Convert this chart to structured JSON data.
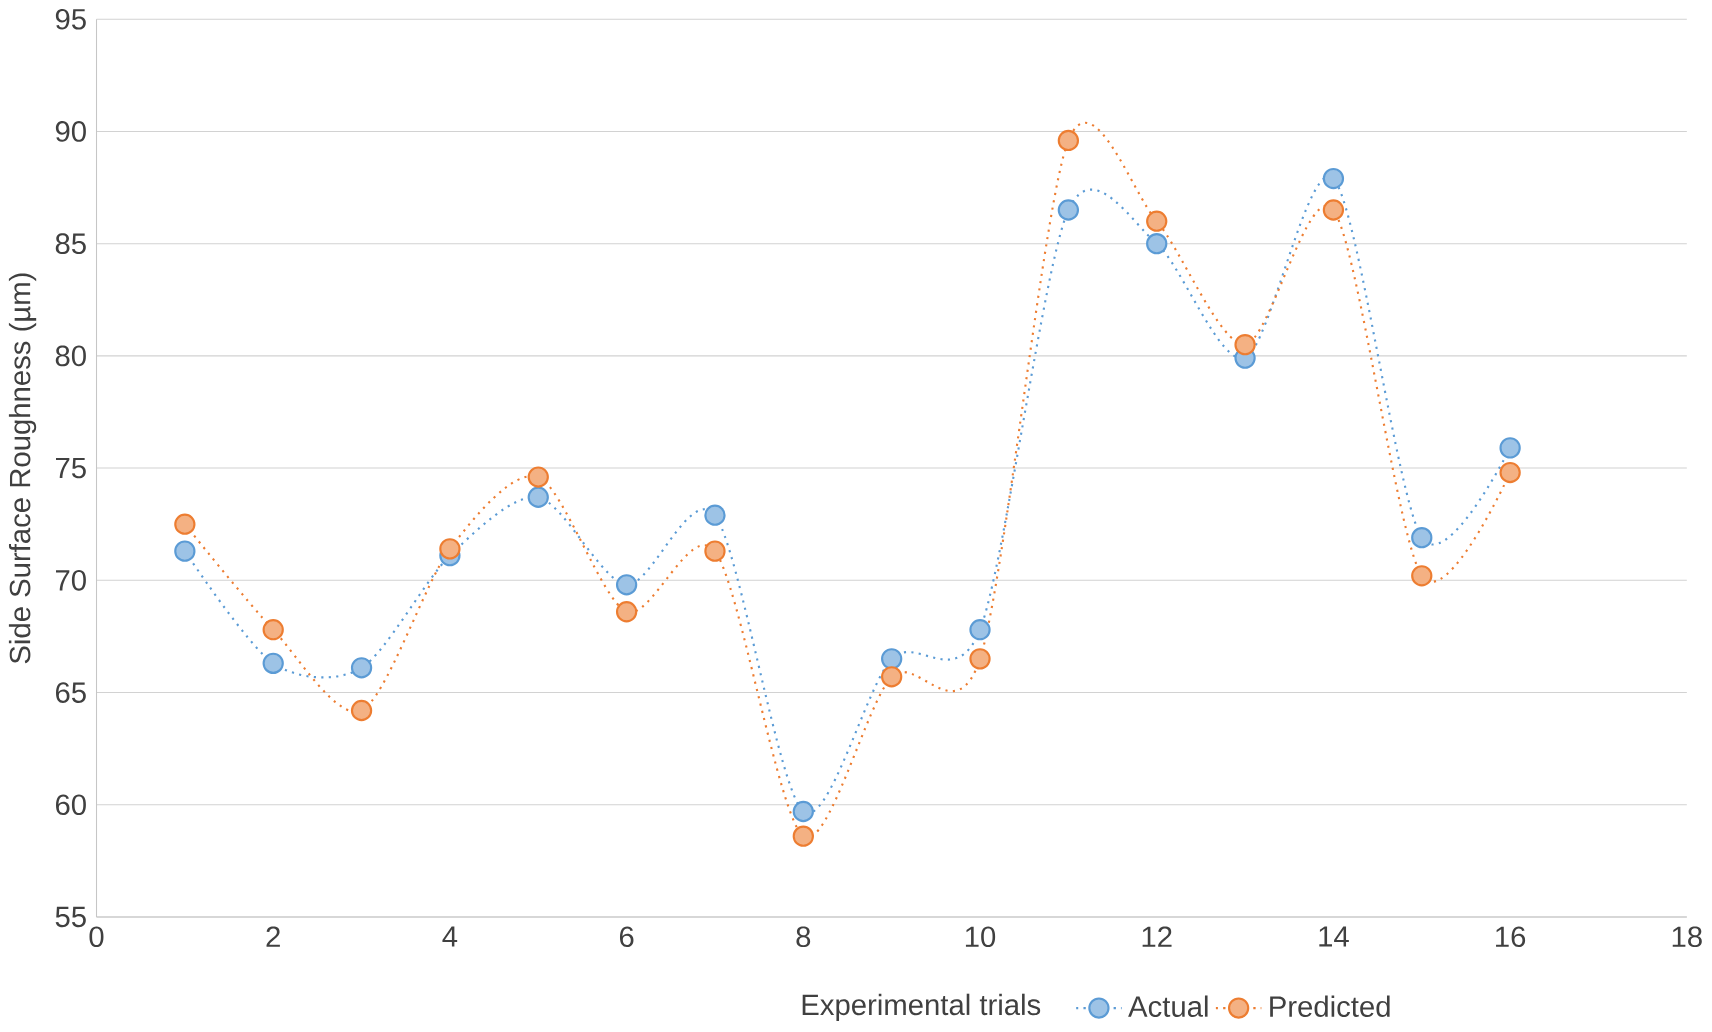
{
  "chart_data": {
    "type": "line",
    "xlabel": "Experimental trials",
    "ylabel": "Side Surface Roughness (µm)",
    "x": [
      1,
      2,
      3,
      4,
      5,
      6,
      7,
      8,
      9,
      10,
      11,
      12,
      13,
      14,
      15,
      16
    ],
    "series": [
      {
        "name": "Actual",
        "color": "#5b9bd5",
        "values": [
          71.3,
          66.3,
          66.1,
          71.1,
          73.7,
          69.8,
          72.9,
          59.7,
          66.5,
          67.8,
          86.5,
          85.0,
          79.9,
          87.9,
          71.9,
          75.9
        ]
      },
      {
        "name": "Predicted",
        "color": "#ed7d31",
        "values": [
          72.5,
          67.8,
          64.2,
          71.4,
          74.6,
          68.6,
          71.3,
          58.6,
          65.7,
          66.5,
          89.6,
          86.0,
          80.5,
          86.5,
          70.2,
          74.8
        ]
      }
    ],
    "xlim": [
      0,
      18
    ],
    "xticks": [
      0,
      2,
      4,
      6,
      8,
      10,
      12,
      14,
      16,
      18
    ],
    "ylim": [
      55,
      95
    ],
    "yticks": [
      55,
      60,
      65,
      70,
      75,
      80,
      85,
      90,
      95
    ],
    "grid": "y",
    "legend": "bottom",
    "marker": "circle",
    "line_style": "dotted"
  }
}
